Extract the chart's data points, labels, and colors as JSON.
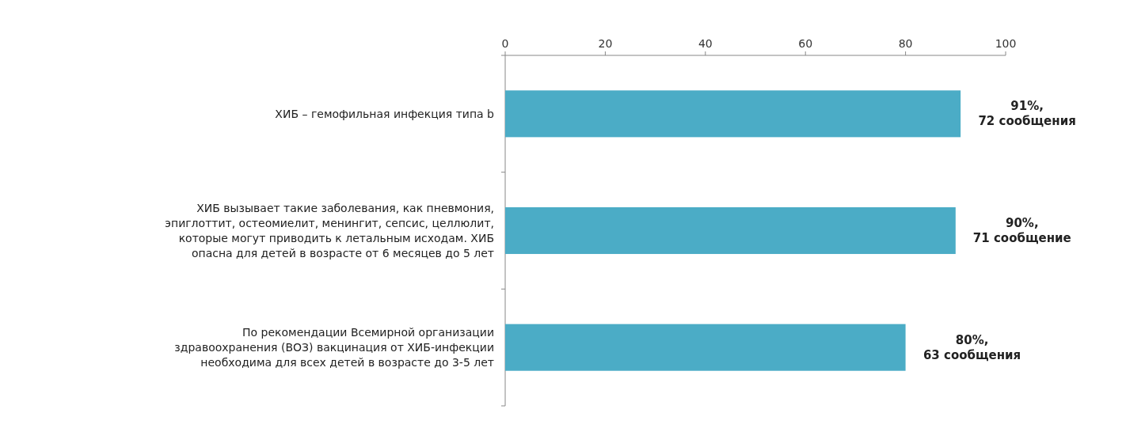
{
  "chart_data": {
    "type": "bar",
    "orientation": "horizontal",
    "categories": [
      "ХИБ – гемофильная инфекция типа b",
      "ХИБ вызывает такие заболевания, как пневмония,\nэпиглоттит, остеомиелит, менингит, сепсис, целлюлит,\nкоторые могут приводить к летальным исходам. ХИБ\nопасна для детей в возрасте от 6 месяцев до 5 лет",
      "По рекомендации Всемирной организации\nздравоохранения (ВОЗ) вакцинация от ХИБ-инфекции\nнеобходима для всех детей в возрасте до 3-5 лет"
    ],
    "values": [
      91,
      90,
      80
    ],
    "value_labels": [
      "91%,\n72 сообщения",
      "90%,\n71 сообщение",
      "80%,\n63 сообщения"
    ],
    "color": "#4bacc6",
    "xlim": [
      0,
      100
    ],
    "xticks": [
      0,
      20,
      40,
      60,
      80,
      100
    ],
    "grid": false
  }
}
